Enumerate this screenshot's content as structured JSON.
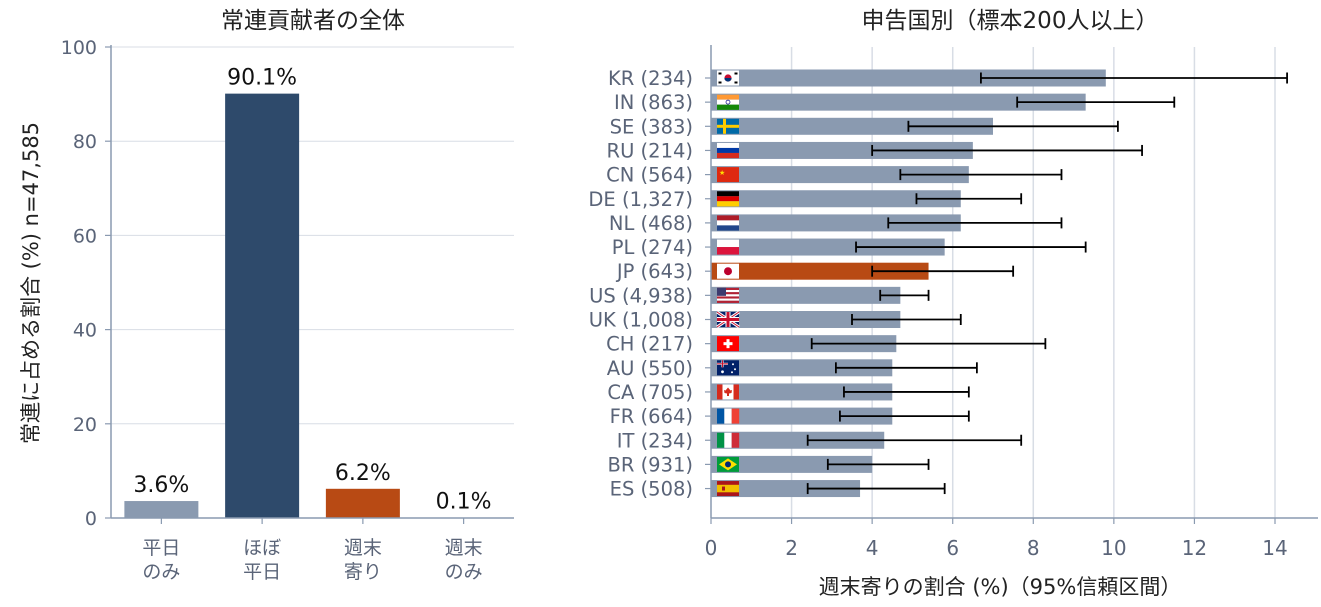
{
  "chart_data": [
    {
      "type": "bar",
      "title": "常連貢献者の全体",
      "ylabel": "常連に占める割合 (%)  n=47,585",
      "ylim": [
        0,
        100
      ],
      "yticks": [
        "0",
        "20",
        "40",
        "60",
        "80",
        "100"
      ],
      "grid": "horizontal",
      "categories": [
        {
          "line1": "平日",
          "line2": "のみ"
        },
        {
          "line1": "ほぼ",
          "line2": "平日"
        },
        {
          "line1": "週末",
          "line2": "寄り"
        },
        {
          "line1": "週末",
          "line2": "のみ"
        }
      ],
      "values": [
        3.6,
        90.1,
        6.2,
        0.1
      ],
      "value_labels": [
        "3.6%",
        "90.1%",
        "6.2%",
        "0.1%"
      ],
      "colors": [
        "#8a9ab0",
        "#2e4a6b",
        "#b84a14",
        "#8a9ab0"
      ]
    },
    {
      "type": "bar",
      "orientation": "horizontal",
      "title": "申告国別（標本200人以上）",
      "xlabel": "週末寄りの割合 (%)（95%信頼区間）",
      "xlim": [
        0,
        15
      ],
      "xticks": [
        "0",
        "2",
        "4",
        "6",
        "8",
        "10",
        "12",
        "14"
      ],
      "grid": "vertical",
      "colors": {
        "bar": "#8a9ab0",
        "highlight": "#b84a14",
        "error": "#000000"
      },
      "rows": [
        {
          "label": "KR (234)",
          "flag": "kr-flag-icon",
          "value": 9.8,
          "ci_low": 6.7,
          "ci_high": 14.3,
          "highlight": false
        },
        {
          "label": "IN (863)",
          "flag": "in-flag-icon",
          "value": 9.3,
          "ci_low": 7.6,
          "ci_high": 11.5,
          "highlight": false
        },
        {
          "label": "SE (383)",
          "flag": "se-flag-icon",
          "value": 7.0,
          "ci_low": 4.9,
          "ci_high": 10.1,
          "highlight": false
        },
        {
          "label": "RU (214)",
          "flag": "ru-flag-icon",
          "value": 6.5,
          "ci_low": 4.0,
          "ci_high": 10.7,
          "highlight": false
        },
        {
          "label": "CN (564)",
          "flag": "cn-flag-icon",
          "value": 6.4,
          "ci_low": 4.7,
          "ci_high": 8.7,
          "highlight": false
        },
        {
          "label": "DE (1,327)",
          "flag": "de-flag-icon",
          "value": 6.2,
          "ci_low": 5.1,
          "ci_high": 7.7,
          "highlight": false
        },
        {
          "label": "NL (468)",
          "flag": "nl-flag-icon",
          "value": 6.2,
          "ci_low": 4.4,
          "ci_high": 8.7,
          "highlight": false
        },
        {
          "label": "PL (274)",
          "flag": "pl-flag-icon",
          "value": 5.8,
          "ci_low": 3.6,
          "ci_high": 9.3,
          "highlight": false
        },
        {
          "label": "JP (643)",
          "flag": "jp-flag-icon",
          "value": 5.4,
          "ci_low": 4.0,
          "ci_high": 7.5,
          "highlight": true
        },
        {
          "label": "US (4,938)",
          "flag": "us-flag-icon",
          "value": 4.7,
          "ci_low": 4.2,
          "ci_high": 5.4,
          "highlight": false
        },
        {
          "label": "UK (1,008)",
          "flag": "uk-flag-icon",
          "value": 4.7,
          "ci_low": 3.5,
          "ci_high": 6.2,
          "highlight": false
        },
        {
          "label": "CH (217)",
          "flag": "ch-flag-icon",
          "value": 4.6,
          "ci_low": 2.5,
          "ci_high": 8.3,
          "highlight": false
        },
        {
          "label": "AU (550)",
          "flag": "au-flag-icon",
          "value": 4.5,
          "ci_low": 3.1,
          "ci_high": 6.6,
          "highlight": false
        },
        {
          "label": "CA (705)",
          "flag": "ca-flag-icon",
          "value": 4.5,
          "ci_low": 3.3,
          "ci_high": 6.4,
          "highlight": false
        },
        {
          "label": "FR (664)",
          "flag": "fr-flag-icon",
          "value": 4.5,
          "ci_low": 3.2,
          "ci_high": 6.4,
          "highlight": false
        },
        {
          "label": "IT (234)",
          "flag": "it-flag-icon",
          "value": 4.3,
          "ci_low": 2.4,
          "ci_high": 7.7,
          "highlight": false
        },
        {
          "label": "BR (931)",
          "flag": "br-flag-icon",
          "value": 4.0,
          "ci_low": 2.9,
          "ci_high": 5.4,
          "highlight": false
        },
        {
          "label": "ES (508)",
          "flag": "es-flag-icon",
          "value": 3.7,
          "ci_low": 2.4,
          "ci_high": 5.8,
          "highlight": false
        }
      ]
    }
  ]
}
